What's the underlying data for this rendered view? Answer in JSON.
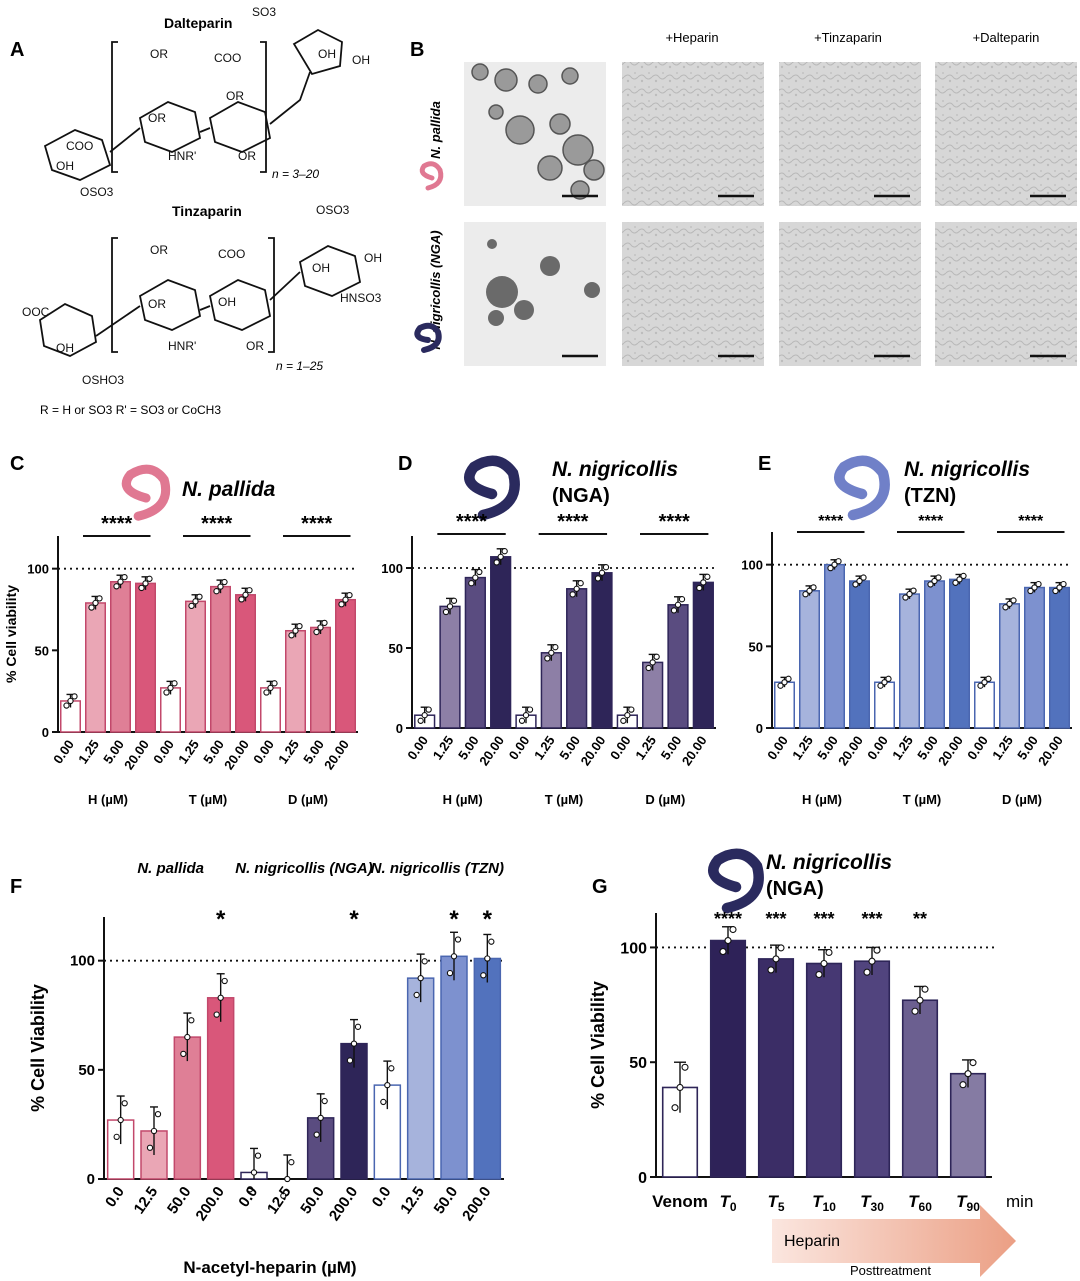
{
  "panel_letters": [
    "A",
    "B",
    "C",
    "D",
    "E",
    "F",
    "G"
  ],
  "panelA": {
    "dalteparin_title": "Dalteparin",
    "tinzaparin_title": "Tinzaparin",
    "dalteparin_n": "n = 3–20",
    "tinzaparin_n": "n = 1–25",
    "labels": {
      "so3_top": "SO3",
      "oh": "OH",
      "or": "OR",
      "coo": "COO",
      "hnr": "HNR'",
      "oso3": "OSO3",
      "hnso3": "HNSO3",
      "ooc": "OOC",
      "oshso3": "OSHO3",
      "r_def": "R = H or SO3   R' = SO3   or CoCH3"
    }
  },
  "panelB": {
    "columns": [
      "+Heparin",
      "+Tinzaparin",
      "+Dalteparin"
    ],
    "rows": [
      "N. pallida",
      "N. nigricollis (NGA)"
    ]
  },
  "colors": {
    "pallida": [
      "#ffffff",
      "#eaa6b5",
      "#df7f96",
      "#d9577a"
    ],
    "nga": [
      "#ffffff",
      "#8d7fa6",
      "#5a4c80",
      "#2e2558"
    ],
    "tzn": [
      "#ffffff",
      "#a6b3dc",
      "#7d91cf",
      "#5272bd"
    ],
    "pallida_edge": "#c2486b",
    "nga_edge": "#2e2558",
    "tzn_edge": "#4a66b0",
    "snake_pallida": "#e07892",
    "snake_nga": "#2a2a5e",
    "snake_tzn": "#7080c8",
    "arrow_start": "#fbe6df",
    "arrow_end": "#eb9f84"
  },
  "chart_data": [
    {
      "id": "C",
      "type": "bar",
      "title": "N. pallida",
      "ylabel": "% Cell viability",
      "ylim": [
        0,
        120
      ],
      "yticks": [
        0,
        50,
        100
      ],
      "reference_line": 100,
      "groups": [
        {
          "label": "H (µM)",
          "categories": [
            "0.00",
            "1.25",
            "5.00",
            "20.00"
          ],
          "values": [
            19,
            79,
            92,
            91
          ],
          "sig": "****"
        },
        {
          "label": "T (µM)",
          "categories": [
            "0.00",
            "1.25",
            "5.00",
            "20.00"
          ],
          "values": [
            27,
            80,
            89,
            84
          ],
          "sig": "****"
        },
        {
          "label": "D (µM)",
          "categories": [
            "0.00",
            "1.25",
            "5.00",
            "20.00"
          ],
          "values": [
            27,
            62,
            64,
            81
          ],
          "sig": "****"
        }
      ]
    },
    {
      "id": "D",
      "type": "bar",
      "title": "N. nigricollis (NGA)",
      "ylabel": "",
      "ylim": [
        0,
        120
      ],
      "yticks": [
        0,
        50,
        100
      ],
      "reference_line": 100,
      "groups": [
        {
          "label": "H (µM)",
          "categories": [
            "0.00",
            "1.25",
            "5.00",
            "20.00"
          ],
          "values": [
            8,
            76,
            94,
            107
          ],
          "sig": "****"
        },
        {
          "label": "T (µM)",
          "categories": [
            "0.00",
            "1.25",
            "5.00",
            "20.00"
          ],
          "values": [
            8,
            47,
            87,
            97
          ],
          "sig": "****"
        },
        {
          "label": "D (µM)",
          "categories": [
            "0.00",
            "1.25",
            "5.00",
            "20.00"
          ],
          "values": [
            8,
            41,
            77,
            91
          ],
          "sig": "****"
        }
      ]
    },
    {
      "id": "E",
      "type": "bar",
      "title": "N. nigricollis (TZN)",
      "ylabel": "",
      "ylim": [
        0,
        120
      ],
      "yticks": [
        0,
        50,
        100
      ],
      "reference_line": 100,
      "groups": [
        {
          "label": "H (µM)",
          "categories": [
            "0.00",
            "1.25",
            "5.00",
            "20.00"
          ],
          "values": [
            28,
            84,
            100,
            90
          ],
          "sig": "****"
        },
        {
          "label": "T (µM)",
          "categories": [
            "0.00",
            "1.25",
            "5.00",
            "20.00"
          ],
          "values": [
            28,
            82,
            90,
            91
          ],
          "sig": "****"
        },
        {
          "label": "D (µM)",
          "categories": [
            "0.00",
            "1.25",
            "5.00",
            "20.00"
          ],
          "values": [
            28,
            76,
            86,
            86
          ],
          "sig": "****"
        }
      ]
    },
    {
      "id": "F",
      "type": "bar",
      "ylabel": "% Cell Viability",
      "xlabel": "N-acetyl-heparin (µM)",
      "ylim": [
        0,
        120
      ],
      "yticks": [
        0,
        50,
        100
      ],
      "reference_line": 100,
      "groups": [
        {
          "label": "N. pallida",
          "categories": [
            "0.0",
            "12.5",
            "50.0",
            "200.0"
          ],
          "values": [
            27,
            22,
            65,
            83
          ],
          "sig": [
            "",
            "",
            "",
            "*"
          ]
        },
        {
          "label": "N. nigricollis (NGA)",
          "categories": [
            "0.0",
            "12.5",
            "50.0",
            "200.0"
          ],
          "values": [
            3,
            0,
            28,
            62
          ],
          "sig": [
            "",
            "",
            "",
            "*"
          ]
        },
        {
          "label": "N. nigricollis (TZN)",
          "categories": [
            "0.0",
            "12.5",
            "50.0",
            "200.0"
          ],
          "values": [
            43,
            92,
            102,
            101
          ],
          "sig": [
            "",
            "",
            "*",
            "*"
          ]
        }
      ]
    },
    {
      "id": "G",
      "type": "bar",
      "title": "N. nigricollis (NGA)",
      "ylabel": "% Cell Viability",
      "ylim": [
        0,
        115
      ],
      "yticks": [
        0,
        50,
        100
      ],
      "reference_line": 100,
      "categories": [
        "Venom",
        "T0",
        "T5",
        "T10",
        "T30",
        "T60",
        "T90"
      ],
      "values": [
        39,
        103,
        95,
        93,
        94,
        77,
        45
      ],
      "sig": [
        "",
        "****",
        "***",
        "***",
        "***",
        "**",
        ""
      ],
      "x_unit": "min",
      "arrow_label": "Heparin",
      "arrow_sublabel": "Posttreatment"
    }
  ]
}
